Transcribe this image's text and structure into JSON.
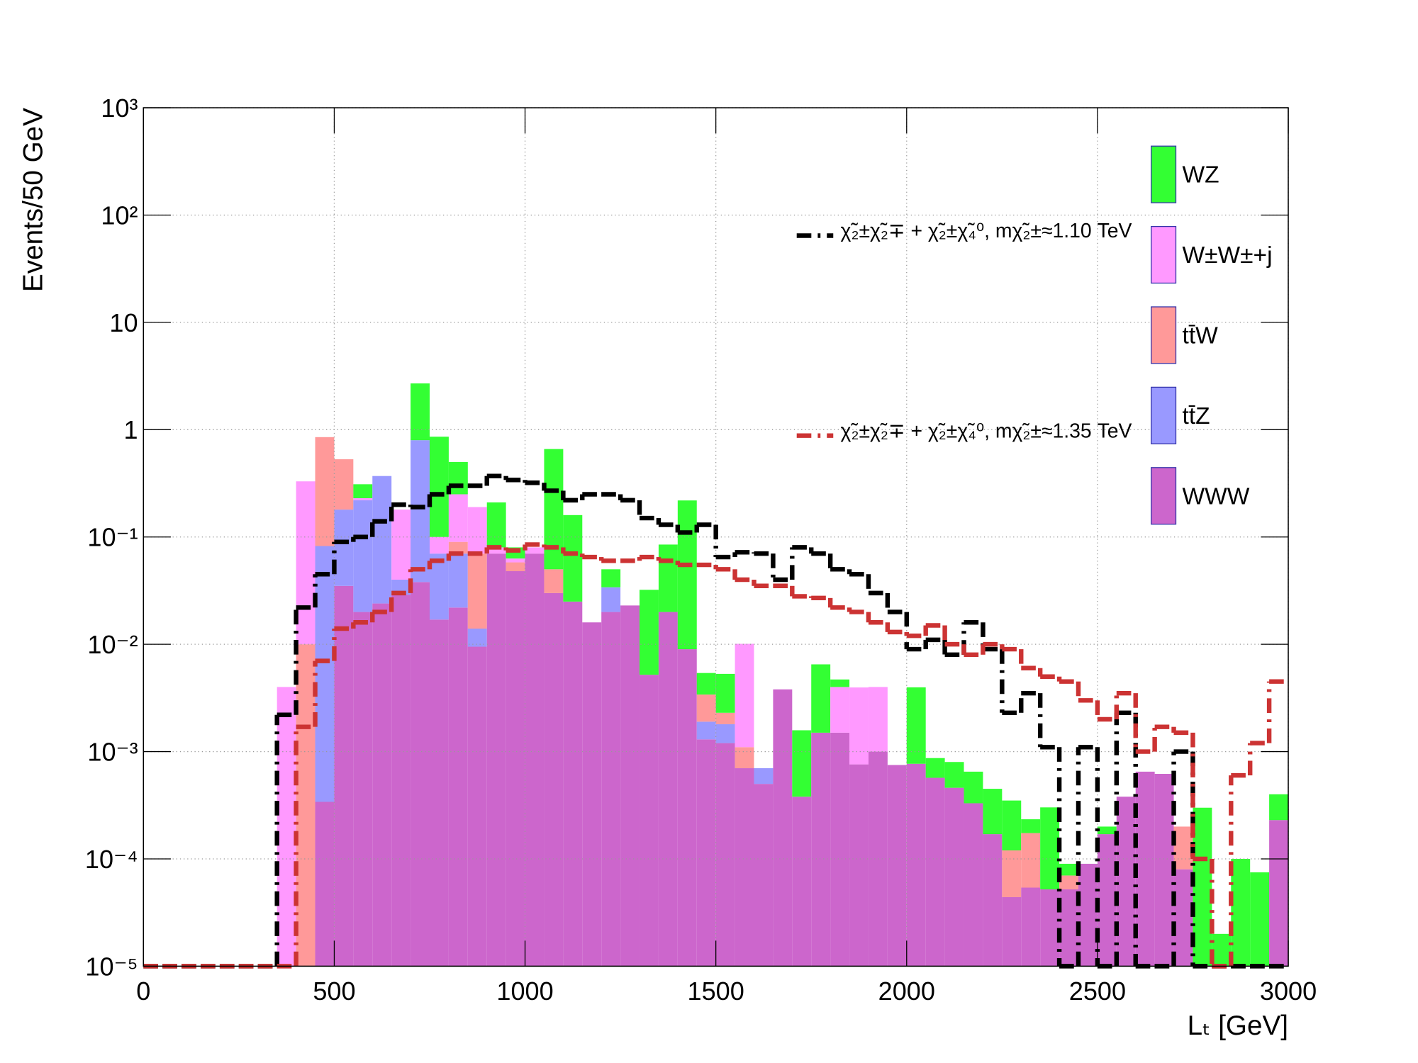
{
  "chart_data": {
    "type": "histogram",
    "stacked": true,
    "log_y": true,
    "grid": true,
    "x_label": "Lₜ [GeV]",
    "y_label": "Events/50 GeV",
    "xlim": [
      0,
      3000
    ],
    "ylim": [
      1e-05,
      1000
    ],
    "xticks": [
      0,
      500,
      1000,
      1500,
      2000,
      2500,
      3000
    ],
    "yticks": [
      {
        "value": 1e-05,
        "label": "10⁻⁵"
      },
      {
        "value": 0.0001,
        "label": "10⁻⁴"
      },
      {
        "value": 0.001,
        "label": "10⁻³"
      },
      {
        "value": 0.01,
        "label": "10⁻²"
      },
      {
        "value": 0.1,
        "label": "10⁻¹"
      },
      1,
      10,
      {
        "value": 100,
        "label": "10²"
      },
      {
        "value": 1000,
        "label": "10³"
      }
    ],
    "bins": [
      0,
      50,
      100,
      150,
      200,
      250,
      300,
      350,
      400,
      450,
      500,
      550,
      600,
      650,
      700,
      750,
      800,
      850,
      900,
      950,
      1000,
      1050,
      1100,
      1150,
      1200,
      1250,
      1300,
      1350,
      1400,
      1450,
      1500,
      1550,
      1600,
      1650,
      1700,
      1750,
      1800,
      1850,
      1900,
      1950,
      2000,
      2050,
      2100,
      2150,
      2200,
      2250,
      2300,
      2350,
      2400,
      2450,
      2500,
      2550,
      2600,
      2650,
      2700,
      2750,
      2800,
      2850,
      2900,
      2950,
      3000
    ],
    "series": [
      {
        "name": "WWW",
        "color": "#cc66cc",
        "stack": true,
        "values": [
          0,
          0,
          0,
          0,
          0,
          0,
          0,
          0,
          0,
          0.00034,
          0.035,
          0.02,
          0.024,
          0.029,
          0.038,
          0.017,
          0.022,
          0.0095,
          0.07,
          0.048,
          0.07,
          0.03,
          0.025,
          0.016,
          0.02,
          0.023,
          0.0052,
          0.02,
          0.009,
          0.0013,
          0.0012,
          0.0007,
          0.0005,
          0.0038,
          0.00038,
          0.0015,
          0.0015,
          0.00076,
          0.001,
          0.00075,
          0.00077,
          0.00057,
          0.00046,
          0.00033,
          0.00017,
          4.4e-05,
          5.4e-05,
          5.2e-05,
          5.2e-05,
          9e-05,
          0.00017,
          0.00038,
          0.00065,
          0.00062,
          8e-05,
          0,
          0,
          0,
          0,
          0.00023
        ]
      },
      {
        "name": "tt̄Z",
        "color": "#9999ff",
        "stack": true,
        "values": [
          0,
          0,
          0,
          0,
          0,
          0,
          0,
          0,
          0,
          0.082,
          0.145,
          0.2,
          0.346,
          0.011,
          0.76,
          0.053,
          0.048,
          0.0045,
          0,
          0,
          0,
          0,
          0,
          0,
          0.014,
          0,
          0,
          0,
          0,
          0.0006,
          0.0006,
          0,
          0.0002,
          0,
          0,
          0,
          0,
          0,
          0,
          0,
          0,
          0,
          0,
          0,
          0,
          0,
          0,
          0,
          0,
          0,
          0,
          0,
          0,
          0,
          0,
          0,
          0,
          0,
          0,
          0
        ]
      },
      {
        "name": "tt̄W",
        "color": "#ff9999",
        "stack": true,
        "values": [
          0,
          0,
          0,
          0,
          0,
          0,
          0,
          0,
          0.01,
          0.77,
          0.35,
          0,
          0,
          0,
          0,
          0,
          0.02,
          0.056,
          0,
          0.01,
          0,
          0.02,
          0,
          0,
          0,
          0,
          0,
          0,
          0,
          0.0015,
          0.0005,
          0.0004,
          0,
          0,
          0,
          0,
          0,
          0,
          0,
          0,
          0,
          0,
          0,
          0,
          0,
          7.6e-05,
          0.00012,
          0,
          1.8e-05,
          0,
          0,
          0,
          0,
          0,
          0.00012,
          0,
          0,
          0,
          0,
          0
        ]
      },
      {
        "name": "W±W±+j",
        "color": "#ff99ff",
        "stack": true,
        "values": [
          0,
          0,
          0,
          0,
          0,
          0,
          0,
          0.004,
          0.32,
          0,
          0,
          0.01,
          0,
          0.14,
          0,
          0.03,
          0.16,
          0.12,
          0.01,
          0.005,
          0.01,
          0,
          0,
          0,
          0,
          0,
          0,
          0,
          0,
          0,
          0,
          0.009,
          0,
          0,
          0,
          0,
          0.0025,
          0.0032,
          0.003,
          0,
          0,
          0,
          0,
          0,
          0,
          0,
          0,
          0,
          0,
          0,
          0,
          0,
          0,
          0,
          0,
          0,
          0,
          0,
          0,
          0
        ]
      },
      {
        "name": "WZ",
        "color": "#33ff33",
        "stack": true,
        "values": [
          0,
          0,
          0,
          0,
          0,
          0,
          0,
          0,
          0,
          0,
          0,
          0.08,
          0,
          0,
          1.9,
          0.76,
          0.25,
          0,
          0.13,
          0.017,
          0,
          0.61,
          0.135,
          0,
          0.016,
          0,
          0.027,
          0.065,
          0.21,
          0.002,
          0.003,
          0,
          0,
          0,
          0.0012,
          0.005,
          0.0007,
          0,
          0,
          0,
          0.0032,
          0.0003,
          0.00034,
          0.00032,
          0.00028,
          0.00023,
          6e-05,
          0.00025,
          2e-05,
          0,
          3e-05,
          0,
          0,
          0,
          0,
          0.0003,
          2e-05,
          0.0001,
          7.5e-05,
          0.00017
        ]
      },
      {
        "name": "χ̃₂±χ̃₂∓ + χ̃₂±χ̃₄⁰, mχ̃₂±≈1.10 TeV",
        "color": "#000000",
        "stack": false,
        "line_style": "dashed",
        "values": [
          1e-05,
          1e-05,
          1e-05,
          1e-05,
          1e-05,
          1e-05,
          1e-05,
          0.0022,
          0.022,
          0.045,
          0.09,
          0.1,
          0.14,
          0.2,
          0.19,
          0.25,
          0.3,
          0.3,
          0.37,
          0.34,
          0.32,
          0.27,
          0.22,
          0.25,
          0.25,
          0.22,
          0.15,
          0.13,
          0.11,
          0.13,
          0.065,
          0.072,
          0.07,
          0.04,
          0.08,
          0.07,
          0.05,
          0.045,
          0.03,
          0.02,
          0.009,
          0.011,
          0.008,
          0.016,
          0.009,
          0.0023,
          0.0035,
          0.0011,
          1e-05,
          0.0011,
          1e-05,
          0.0023,
          1e-05,
          1e-05,
          0.001,
          1e-05,
          1e-05,
          1e-05,
          1e-05,
          1e-05
        ]
      },
      {
        "name": "χ̃₂±χ̃₂∓ + χ̃₂±χ̃₄⁰, mχ̃₂±≈1.35 TeV",
        "color": "#cc3333",
        "stack": false,
        "line_style": "dashed",
        "values": [
          1e-05,
          1e-05,
          1e-05,
          1e-05,
          1e-05,
          1e-05,
          1e-05,
          1e-05,
          0.0017,
          0.007,
          0.014,
          0.016,
          0.02,
          0.03,
          0.05,
          0.06,
          0.07,
          0.07,
          0.08,
          0.075,
          0.085,
          0.08,
          0.07,
          0.065,
          0.06,
          0.06,
          0.065,
          0.06,
          0.055,
          0.055,
          0.05,
          0.04,
          0.035,
          0.035,
          0.028,
          0.027,
          0.022,
          0.02,
          0.016,
          0.013,
          0.012,
          0.015,
          0.01,
          0.008,
          0.01,
          0.009,
          0.006,
          0.005,
          0.0045,
          0.003,
          0.002,
          0.0035,
          0.001,
          0.0017,
          0.0015,
          0.0001,
          1e-05,
          0.0006,
          0.0012,
          0.0045
        ]
      }
    ]
  }
}
